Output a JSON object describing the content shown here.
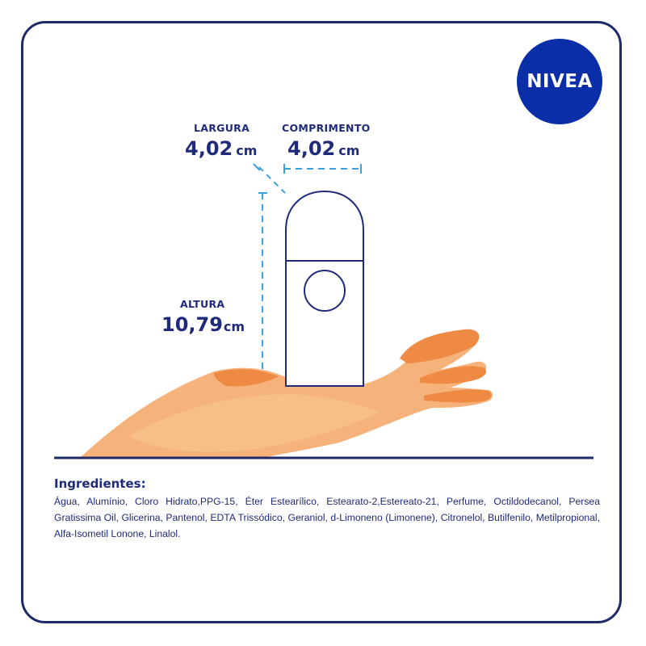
{
  "brand": {
    "logo_text": "NIVEA",
    "color": "#0a2ea8"
  },
  "dimensions": {
    "largura": {
      "label": "LARGURA",
      "value": "4,02",
      "unit": "cm"
    },
    "comprimento": {
      "label": "COMPRIMENTO",
      "value": "4,02",
      "unit": "cm"
    },
    "altura": {
      "label": "ALTURA",
      "value": "10,79",
      "unit": "cm"
    }
  },
  "ingredients": {
    "title": "Ingredientes:",
    "text": "Água, Alumínio, Cloro Hidrato,PPG-15, Éter Estearílico, Estearato-2,Estereato-21, Perfume, Octildodecanol, Persea Gratissima Oil, Glicerina, Pantenol, EDTA Trissódico, Geraniol, d-Limoneno (Limonene), Citronelol, Butilfenilo, Metilpropional, Alfa-Isometil Lonone, Linalol."
  },
  "colors": {
    "navy": "#1f2a7a",
    "dashed_line": "#3aa0e0",
    "hand_light": "#f5b27a",
    "hand_dark": "#ee8a44"
  }
}
